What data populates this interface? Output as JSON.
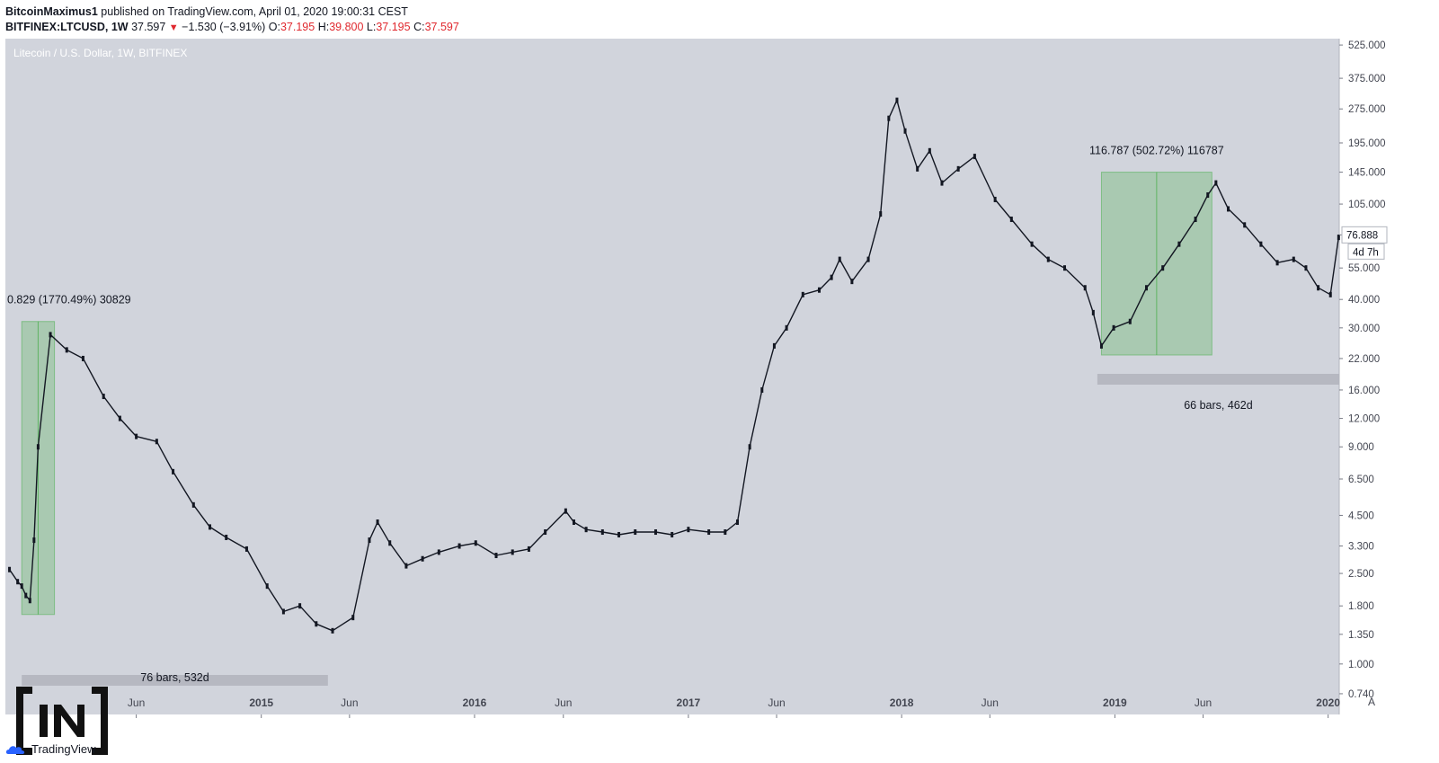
{
  "header": {
    "author": "BitcoinMaximus1",
    "published_text": " published on TradingView.com, April 01, 2020 19:00:31 CEST",
    "symbol": "BITFINEX:LTCUSD, 1W",
    "last": "37.597",
    "change": "−1.530 (−3.91%)",
    "o_label": "O:",
    "o": "37.195",
    "h_label": "H:",
    "h": "39.800",
    "l_label": "L:",
    "l": "37.195",
    "c_label": "C:",
    "c": "37.597"
  },
  "chart_data": {
    "type": "line",
    "title": "Litecoin / U.S. Dollar, 1W, BITFINEX",
    "xlabel": "",
    "ylabel": "",
    "y_scale": "log",
    "ylim": [
      0.6,
      560
    ],
    "xlim": [
      "2013-10-20",
      "2020-01-20"
    ],
    "x_ticks": [
      {
        "label": "Jun",
        "date": "2014-06-01"
      },
      {
        "label": "2015",
        "date": "2015-01-01"
      },
      {
        "label": "Jun",
        "date": "2015-06-01"
      },
      {
        "label": "2016",
        "date": "2016-01-01"
      },
      {
        "label": "Jun",
        "date": "2016-06-01"
      },
      {
        "label": "2017",
        "date": "2017-01-01"
      },
      {
        "label": "Jun",
        "date": "2017-06-01"
      },
      {
        "label": "2018",
        "date": "2018-01-01"
      },
      {
        "label": "Jun",
        "date": "2018-06-01"
      },
      {
        "label": "2019",
        "date": "2019-01-01"
      },
      {
        "label": "Jun",
        "date": "2019-06-01"
      },
      {
        "label": "2020",
        "date": "2020-01-01"
      }
    ],
    "y_ticks": [
      "525.000",
      "375.000",
      "275.000",
      "195.000",
      "145.000",
      "105.000",
      "76.888",
      "55.000",
      "40.000",
      "30.000",
      "22.000",
      "16.000",
      "12.000",
      "9.000",
      "6.500",
      "4.500",
      "3.300",
      "2.500",
      "1.800",
      "1.350",
      "1.000",
      "0.740"
    ],
    "y_tick_values": [
      525,
      375,
      275,
      195,
      145,
      105,
      76.888,
      55,
      40,
      30,
      22,
      16,
      12,
      9,
      6.5,
      4.5,
      3.3,
      2.5,
      1.8,
      1.35,
      1.0,
      0.74
    ],
    "price_label": {
      "value": 76.888,
      "text": "76.888",
      "countdown": "4d 7h"
    },
    "series": [
      {
        "x": [
          "2013-10-27",
          "2013-11-10",
          "2013-11-17",
          "2013-11-24",
          "2013-12-01",
          "2013-12-08",
          "2013-12-15",
          "2014-01-05",
          "2014-02-02",
          "2014-03-02",
          "2014-04-06",
          "2014-05-04",
          "2014-06-01",
          "2014-07-06",
          "2014-08-03",
          "2014-09-07",
          "2014-10-05",
          "2014-11-02",
          "2014-12-07",
          "2015-01-11",
          "2015-02-08",
          "2015-03-08",
          "2015-04-05",
          "2015-05-03",
          "2015-06-07",
          "2015-07-05",
          "2015-07-19",
          "2015-08-09",
          "2015-09-06",
          "2015-10-04",
          "2015-11-01",
          "2015-12-06",
          "2016-01-03",
          "2016-02-07",
          "2016-03-06",
          "2016-04-03",
          "2016-05-01",
          "2016-06-05",
          "2016-06-19",
          "2016-07-10",
          "2016-08-07",
          "2016-09-04",
          "2016-10-02",
          "2016-11-06",
          "2016-12-04",
          "2017-01-01",
          "2017-02-05",
          "2017-03-05",
          "2017-03-26",
          "2017-04-16",
          "2017-05-07",
          "2017-05-28",
          "2017-06-18",
          "2017-07-16",
          "2017-08-13",
          "2017-09-03",
          "2017-09-17",
          "2017-10-08",
          "2017-11-05",
          "2017-11-26",
          "2017-12-10",
          "2017-12-24",
          "2018-01-07",
          "2018-01-28",
          "2018-02-18",
          "2018-03-11",
          "2018-04-08",
          "2018-05-06",
          "2018-06-10",
          "2018-07-08",
          "2018-08-12",
          "2018-09-09",
          "2018-10-07",
          "2018-11-11",
          "2018-11-25",
          "2018-12-09",
          "2018-12-30",
          "2019-01-27",
          "2019-02-24",
          "2019-03-24",
          "2019-04-21",
          "2019-05-19",
          "2019-06-09",
          "2019-06-23",
          "2019-07-14",
          "2019-08-11",
          "2019-09-08",
          "2019-10-06",
          "2019-11-03",
          "2019-11-24",
          "2019-12-15",
          "2020-01-05",
          "2020-01-19"
        ],
        "values": [
          2.6,
          2.3,
          2.2,
          2.0,
          1.9,
          3.5,
          9,
          28,
          24,
          22,
          15,
          12,
          10,
          9.5,
          7,
          5,
          4,
          3.6,
          3.2,
          2.2,
          1.7,
          1.8,
          1.5,
          1.4,
          1.6,
          3.5,
          4.2,
          3.4,
          2.7,
          2.9,
          3.1,
          3.3,
          3.4,
          3.0,
          3.1,
          3.2,
          3.8,
          4.7,
          4.2,
          3.9,
          3.8,
          3.7,
          3.8,
          3.8,
          3.7,
          3.9,
          3.8,
          3.8,
          4.2,
          9,
          16,
          25,
          30,
          42,
          44,
          50,
          60,
          48,
          60,
          95,
          250,
          300,
          220,
          150,
          180,
          130,
          150,
          170,
          110,
          90,
          70,
          60,
          55,
          45,
          35,
          25,
          30,
          32,
          45,
          55,
          70,
          90,
          115,
          130,
          100,
          85,
          70,
          58,
          60,
          55,
          45,
          42,
          75
        ]
      }
    ],
    "annotations": [
      {
        "type": "range",
        "text": "0.829 (1770.49%) 30829",
        "x0": "2013-11-17",
        "x1": "2014-01-12",
        "y0": 1.65,
        "y1": 32
      },
      {
        "type": "range",
        "text": "116.787 (502.72%) 116787",
        "x0": "2018-12-09",
        "x1": "2019-06-16",
        "y0": 22.8,
        "y1": 145
      },
      {
        "type": "date-range",
        "text": "76 bars, 532d",
        "x0": "2013-11-17",
        "x1": "2015-04-25"
      },
      {
        "type": "date-range",
        "text": "66 bars, 462d",
        "x0": "2018-12-02",
        "x1": "2020-01-20"
      }
    ],
    "grid": false,
    "legend": "none"
  },
  "brand": {
    "logo_text": "IN",
    "tradingview": "TradingView",
    "scale_mode": "A"
  }
}
